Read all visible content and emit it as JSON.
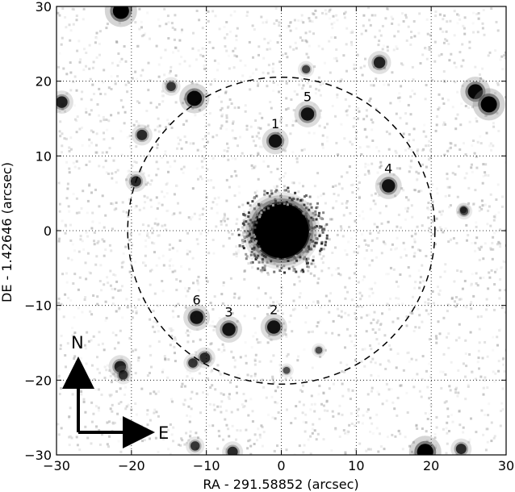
{
  "axes": {
    "xlabel": "RA - 291.58852 (arcsec)",
    "ylabel": "DE - 1.42646 (arcsec)",
    "xlim": [
      -30,
      30
    ],
    "ylim": [
      -30,
      30
    ],
    "xticks": [
      -30,
      -20,
      -10,
      0,
      10,
      20,
      30
    ],
    "yticks": [
      -30,
      -20,
      -10,
      0,
      10,
      20,
      30
    ],
    "xtick_labels": [
      "−30",
      "−20",
      "−10",
      "0",
      "10",
      "20",
      "30"
    ],
    "ytick_labels": [
      "−30",
      "−20",
      "−10",
      "0",
      "10",
      "20",
      "30"
    ],
    "grid": true,
    "grid_style": "dotted"
  },
  "aperture": {
    "center": [
      0,
      0
    ],
    "radius": 20.5,
    "style": "dashed"
  },
  "target_star": {
    "ra": 0,
    "de": 0
  },
  "labeled_sources": [
    {
      "id": "1",
      "ra": -0.8,
      "de": 12.0
    },
    {
      "id": "2",
      "ra": -1.0,
      "de": -12.9
    },
    {
      "id": "3",
      "ra": -7.0,
      "de": -13.2
    },
    {
      "id": "4",
      "ra": 14.3,
      "de": 6.0
    },
    {
      "id": "5",
      "ra": 3.5,
      "de": 15.6
    },
    {
      "id": "6",
      "ra": -11.3,
      "de": -11.6
    }
  ],
  "background_sources": [
    {
      "ra": -21.4,
      "de": 29.4,
      "strength": 1.0
    },
    {
      "ra": -11.6,
      "de": 17.7,
      "strength": 0.9
    },
    {
      "ra": -29.3,
      "de": 17.2,
      "strength": 0.6
    },
    {
      "ra": -18.6,
      "de": 12.8,
      "strength": 0.5
    },
    {
      "ra": -14.7,
      "de": 19.3,
      "strength": 0.4
    },
    {
      "ra": -19.4,
      "de": 6.6,
      "strength": 0.5
    },
    {
      "ra": 3.3,
      "de": 21.6,
      "strength": 0.3
    },
    {
      "ra": 13.1,
      "de": 22.5,
      "strength": 0.6
    },
    {
      "ra": 25.9,
      "de": 18.6,
      "strength": 0.9
    },
    {
      "ra": 27.7,
      "de": 16.9,
      "strength": 1.0
    },
    {
      "ra": 24.4,
      "de": 2.6,
      "strength": 0.3
    },
    {
      "ra": 24.3,
      "de": 2.8,
      "strength": 0.2
    },
    {
      "ra": -10.2,
      "de": -17.0,
      "strength": 0.5
    },
    {
      "ra": -11.8,
      "de": -17.7,
      "strength": 0.4
    },
    {
      "ra": -21.5,
      "de": -18.2,
      "strength": 0.6
    },
    {
      "ra": -21.1,
      "de": -19.3,
      "strength": 0.4
    },
    {
      "ra": -11.5,
      "de": -28.8,
      "strength": 0.4
    },
    {
      "ra": -6.5,
      "de": -29.6,
      "strength": 0.5
    },
    {
      "ra": 19.2,
      "de": -29.6,
      "strength": 1.0
    },
    {
      "ra": 24.0,
      "de": -29.2,
      "strength": 0.5
    },
    {
      "ra": 0.7,
      "de": -18.7,
      "strength": 0.2
    },
    {
      "ra": 5.0,
      "de": -16.0,
      "strength": 0.2
    }
  ],
  "compass": {
    "north_label": "N",
    "east_label": "E"
  }
}
